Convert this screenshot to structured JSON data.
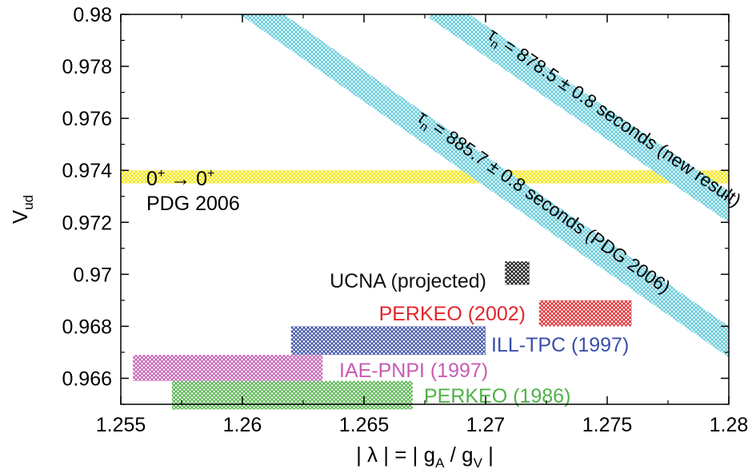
{
  "chart_data": {
    "type": "band",
    "xlabel_parts": [
      "| λ | = | g",
      "A",
      " / g",
      "V",
      " |"
    ],
    "ylabel_parts": [
      "V",
      "ud"
    ],
    "xlim": [
      1.255,
      1.28
    ],
    "ylim": [
      0.965,
      0.98
    ],
    "x_ticks": [
      {
        "value": 1.255,
        "label": "1.255"
      },
      {
        "value": 1.26,
        "label": "1.26"
      },
      {
        "value": 1.265,
        "label": "1.265"
      },
      {
        "value": 1.27,
        "label": "1.27"
      },
      {
        "value": 1.275,
        "label": "1.275"
      },
      {
        "value": 1.28,
        "label": "1.28"
      }
    ],
    "y_ticks": [
      {
        "value": 0.98,
        "label": "0.98"
      },
      {
        "value": 0.978,
        "label": "0.978"
      },
      {
        "value": 0.976,
        "label": "0.976"
      },
      {
        "value": 0.974,
        "label": "0.974"
      },
      {
        "value": 0.972,
        "label": "0.972"
      },
      {
        "value": 0.97,
        "label": "0.97"
      },
      {
        "value": 0.968,
        "label": "0.968"
      },
      {
        "value": 0.966,
        "label": "0.966"
      }
    ],
    "horizontal_band": {
      "y_low": 0.9735,
      "y_high": 0.974,
      "color": "#f2e600",
      "label_line1_parts": [
        "0",
        "+",
        " → 0",
        "+"
      ],
      "label_line2": "PDG 2006"
    },
    "diagonal_bands": [
      {
        "label_tau": "τ",
        "label_sub": "n",
        "label_text": " = 885.7 ± 0.8 seconds (PDG 2006)",
        "color": "#5bc8d8",
        "x_start": 1.2608,
        "y_start": 0.98,
        "x_end": 1.28,
        "y_end": 0.9674,
        "thickness": 0.0006
      },
      {
        "label_tau": "τ",
        "label_sub": "n",
        "label_text": " = 878.5 ± 0.8 seconds (new result)",
        "color": "#5bc8d8",
        "x_start": 1.2684,
        "y_start": 0.98,
        "x_end": 1.28,
        "y_end": 0.9726,
        "thickness": 0.0006
      }
    ],
    "boxes": [
      {
        "label": "UCNA (projected)",
        "x_min": 1.2708,
        "x_max": 1.2718,
        "y_min": 0.9696,
        "y_max": 0.9705,
        "color": "#111111",
        "label_color": "#111111"
      },
      {
        "label": "PERKEO (2002)",
        "x_min": 1.2722,
        "x_max": 1.276,
        "y_min": 0.968,
        "y_max": 0.969,
        "color": "#e2262b",
        "label_color": "#e2262b"
      },
      {
        "label": "ILL-TPC (1997)",
        "x_min": 1.262,
        "x_max": 1.27,
        "y_min": 0.9669,
        "y_max": 0.968,
        "color": "#3a4fa8",
        "label_color": "#3a4fa8"
      },
      {
        "label": "IAE-PNPI (1997)",
        "x_min": 1.2555,
        "x_max": 1.2633,
        "y_min": 0.9659,
        "y_max": 0.9669,
        "color": "#c85bb4",
        "label_color": "#c85bb4"
      },
      {
        "label": "PERKEO (1986)",
        "x_min": 1.2571,
        "x_max": 1.267,
        "y_min": 0.9648,
        "y_max": 0.9659,
        "color": "#4fb346",
        "label_color": "#4fb346"
      }
    ]
  }
}
